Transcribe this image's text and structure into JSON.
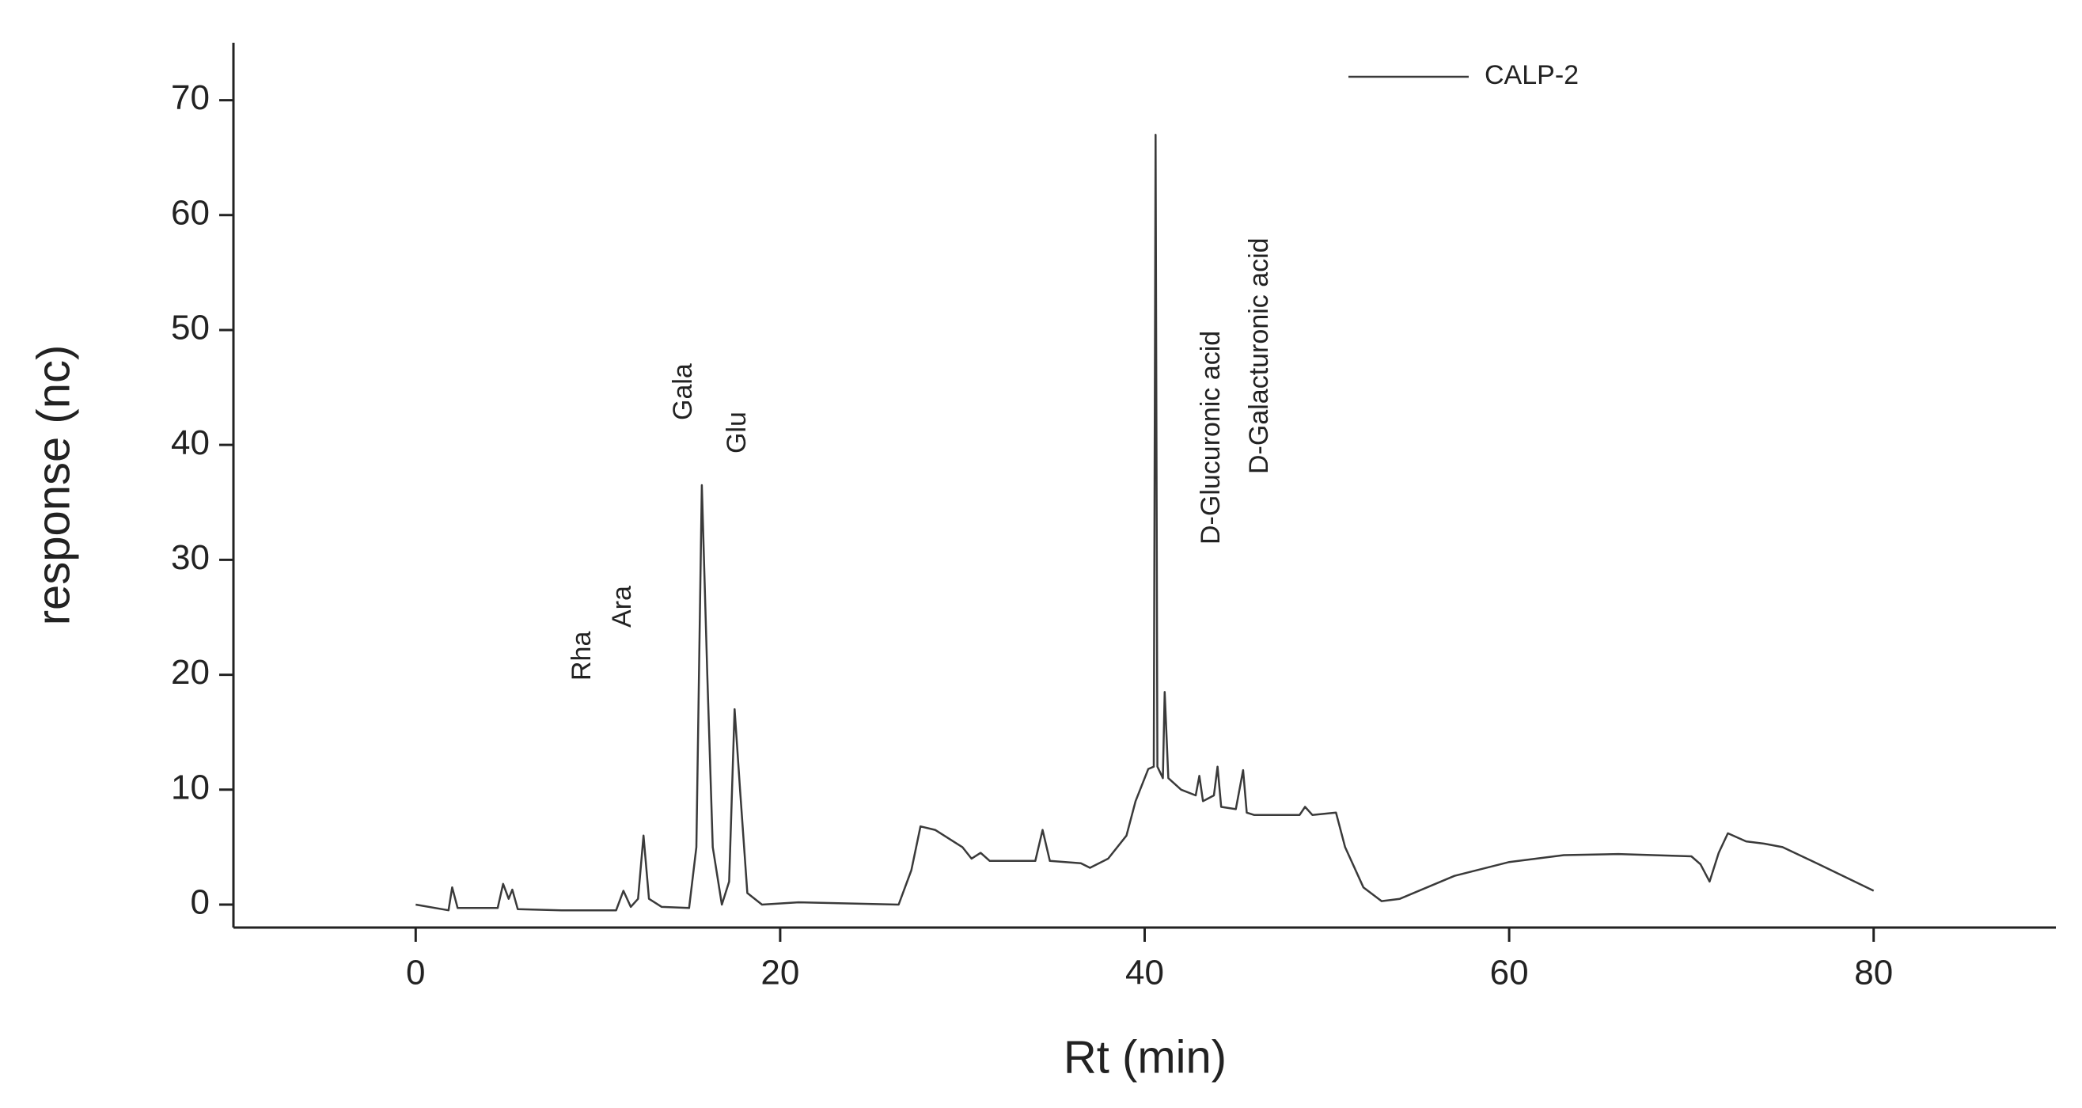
{
  "chart_data": {
    "type": "line",
    "xlabel": "Rt (min)",
    "ylabel": "response (nc)",
    "xlim": [
      -10,
      90
    ],
    "xticks": [
      0,
      20,
      40,
      60,
      80
    ],
    "ylim": [
      -2,
      75
    ],
    "yticks": [
      0,
      10,
      20,
      30,
      40,
      50,
      60,
      70
    ],
    "legend": "upper right",
    "annotations": [
      "Rha",
      "Ara",
      "Gala",
      "Glu",
      "D-Glucuronic acid",
      "D-Galacturonic acid"
    ],
    "x": [
      0,
      1.8,
      2.0,
      2.3,
      4.5,
      4.8,
      5.1,
      5.3,
      5.6,
      8,
      11,
      11.4,
      11.8,
      12.2,
      12.5,
      12.8,
      13.5,
      15,
      15.4,
      15.7,
      16.0,
      16.3,
      16.8,
      17.2,
      17.5,
      17.8,
      18.2,
      19,
      21,
      26.5,
      27.2,
      27.7,
      28.5,
      30,
      30.5,
      31,
      31.5,
      34,
      34.4,
      34.8,
      36.5,
      37,
      38,
      39,
      39.5,
      40.2,
      40.5,
      40.6,
      40.7,
      41,
      41.1,
      41.3,
      42,
      42.8,
      43,
      43.2,
      43.8,
      44,
      44.2,
      45,
      45.4,
      45.6,
      46,
      48.5,
      48.8,
      49.2,
      50.5,
      51,
      52,
      53,
      54,
      57,
      60,
      63,
      66,
      70,
      70.5,
      71,
      71.5,
      72,
      73,
      74,
      75,
      77,
      80
    ],
    "series": [
      {
        "name": "CALP-2",
        "color": "#3a3a3a",
        "values": [
          0,
          -0.5,
          1.5,
          -0.3,
          -0.3,
          1.8,
          0.5,
          1.3,
          -0.4,
          -0.5,
          -0.5,
          1.2,
          -0.2,
          0.5,
          6,
          0.5,
          -0.2,
          -0.3,
          5,
          36.5,
          20,
          5,
          0,
          2,
          17,
          10,
          1,
          0,
          0.2,
          0,
          3,
          6.8,
          6.5,
          5,
          4,
          4.5,
          3.8,
          3.8,
          6.5,
          3.8,
          3.6,
          3.2,
          4,
          6,
          9,
          11.8,
          12,
          67,
          12,
          11,
          18.5,
          11,
          10,
          9.5,
          11.2,
          9,
          9.5,
          12,
          8.5,
          8.3,
          11.7,
          8,
          7.8,
          7.8,
          8.5,
          7.8,
          8,
          5,
          1.5,
          0.3,
          0.5,
          2.5,
          3.7,
          4.3,
          4.4,
          4.2,
          3.5,
          2,
          4.5,
          6.2,
          5.5,
          5.3,
          5,
          3.5,
          1.2
        ]
      }
    ]
  }
}
